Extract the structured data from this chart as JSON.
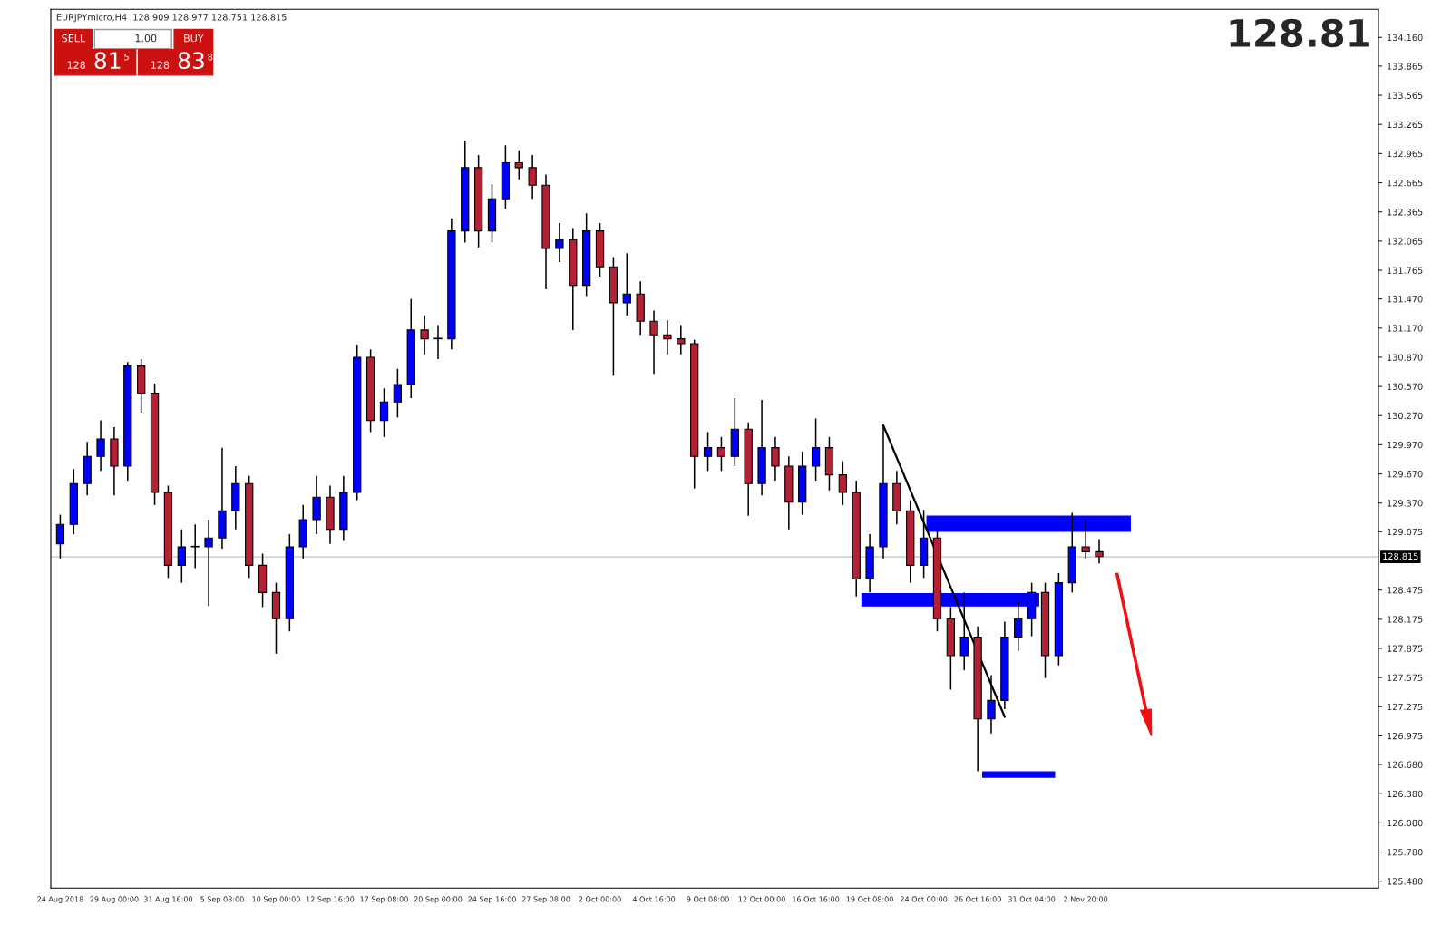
{
  "chart_data": {
    "type": "candlestick",
    "categories": [
      "24 Aug 2018",
      null,
      null,
      null,
      "29 Aug 00:00",
      null,
      null,
      null,
      "31 Aug 16:00",
      null,
      null,
      null,
      "5 Sep 08:00",
      null,
      null,
      null,
      "10 Sep 00:00",
      null,
      null,
      null,
      "12 Sep 16:00",
      null,
      null,
      null,
      "17 Sep 08:00",
      null,
      null,
      null,
      "20 Sep 00:00",
      null,
      null,
      null,
      "24 Sep 16:00",
      null,
      null,
      null,
      "27 Sep 08:00",
      null,
      null,
      null,
      "2 Oct 00:00",
      null,
      null,
      null,
      "4 Oct 16:00",
      null,
      null,
      null,
      "9 Oct 08:00",
      null,
      null,
      null,
      "12 Oct 00:00",
      null,
      null,
      null,
      "16 Oct 16:00",
      null,
      null,
      null,
      "19 Oct 08:00",
      null,
      null,
      null,
      "24 Oct 00:00",
      null,
      null,
      null,
      "26 Oct 16:00",
      null,
      null,
      null,
      "31 Oct 04:00",
      null,
      null,
      null,
      "2 Nov 20:00",
      null,
      null,
      null,
      null,
      null,
      null,
      null,
      null,
      null,
      null,
      null,
      null,
      null,
      null,
      null,
      null,
      null,
      null,
      null,
      null,
      null
    ],
    "ohlc": [
      [
        128.95,
        129.25,
        128.8,
        129.15
      ],
      [
        129.15,
        129.72,
        129.05,
        129.57
      ],
      [
        129.57,
        130.0,
        129.45,
        129.85
      ],
      [
        129.85,
        130.22,
        129.7,
        130.03
      ],
      [
        130.03,
        130.15,
        129.45,
        129.75
      ],
      [
        129.75,
        130.82,
        129.6,
        130.78
      ],
      [
        130.78,
        130.85,
        130.3,
        130.5
      ],
      [
        130.5,
        130.6,
        129.35,
        129.48
      ],
      [
        129.48,
        129.55,
        128.6,
        128.73
      ],
      [
        128.73,
        129.1,
        128.55,
        128.92
      ],
      [
        128.92,
        129.15,
        128.7,
        128.92
      ],
      [
        128.92,
        129.2,
        128.31,
        129.01
      ],
      [
        129.01,
        129.94,
        128.9,
        129.29
      ],
      [
        129.29,
        129.75,
        129.1,
        129.57
      ],
      [
        129.57,
        129.65,
        128.6,
        128.73
      ],
      [
        128.73,
        128.85,
        128.3,
        128.45
      ],
      [
        128.45,
        128.55,
        127.82,
        128.18
      ],
      [
        128.18,
        129.05,
        128.05,
        128.92
      ],
      [
        128.92,
        129.35,
        128.8,
        129.2
      ],
      [
        129.2,
        129.65,
        129.05,
        129.43
      ],
      [
        129.43,
        129.55,
        128.95,
        129.1
      ],
      [
        129.1,
        129.65,
        128.98,
        129.48
      ],
      [
        129.48,
        131.0,
        129.4,
        130.87
      ],
      [
        130.87,
        130.95,
        130.1,
        130.22
      ],
      [
        130.22,
        130.55,
        130.05,
        130.41
      ],
      [
        130.41,
        130.75,
        130.25,
        130.59
      ],
      [
        130.59,
        131.47,
        130.45,
        131.15
      ],
      [
        131.15,
        131.3,
        130.9,
        131.06
      ],
      [
        131.06,
        131.2,
        130.85,
        131.06
      ],
      [
        131.06,
        132.3,
        130.95,
        132.17
      ],
      [
        132.17,
        133.1,
        132.05,
        132.82
      ],
      [
        132.82,
        132.95,
        132.0,
        132.17
      ],
      [
        132.17,
        132.65,
        132.05,
        132.5
      ],
      [
        132.5,
        133.05,
        132.4,
        132.87
      ],
      [
        132.87,
        133.0,
        132.7,
        132.82
      ],
      [
        132.82,
        132.95,
        132.5,
        132.64
      ],
      [
        132.64,
        132.75,
        131.57,
        131.99
      ],
      [
        131.99,
        132.25,
        131.85,
        132.08
      ],
      [
        132.08,
        132.2,
        131.15,
        131.61
      ],
      [
        131.61,
        132.35,
        131.5,
        132.17
      ],
      [
        132.17,
        132.25,
        131.7,
        131.8
      ],
      [
        131.8,
        131.9,
        130.68,
        131.43
      ],
      [
        131.43,
        131.94,
        131.3,
        131.52
      ],
      [
        131.52,
        131.65,
        131.1,
        131.24
      ],
      [
        131.24,
        131.35,
        130.7,
        131.1
      ],
      [
        131.1,
        131.25,
        130.9,
        131.06
      ],
      [
        131.06,
        131.2,
        130.9,
        131.01
      ],
      [
        131.01,
        131.05,
        129.52,
        129.85
      ],
      [
        129.85,
        130.1,
        129.7,
        129.94
      ],
      [
        129.94,
        130.05,
        129.7,
        129.85
      ],
      [
        129.85,
        130.45,
        129.75,
        130.13
      ],
      [
        130.13,
        130.2,
        129.24,
        129.57
      ],
      [
        129.57,
        130.43,
        129.45,
        129.94
      ],
      [
        129.94,
        130.05,
        129.6,
        129.75
      ],
      [
        129.75,
        129.85,
        129.1,
        129.38
      ],
      [
        129.38,
        129.9,
        129.25,
        129.75
      ],
      [
        129.75,
        130.24,
        129.6,
        129.94
      ],
      [
        129.94,
        130.05,
        129.5,
        129.66
      ],
      [
        129.66,
        129.8,
        129.35,
        129.48
      ],
      [
        129.48,
        129.6,
        128.41,
        128.59
      ],
      [
        128.59,
        129.05,
        128.45,
        128.92
      ],
      [
        128.92,
        130.17,
        128.8,
        129.57
      ],
      [
        129.57,
        129.7,
        129.15,
        129.29
      ],
      [
        129.29,
        129.4,
        128.55,
        128.73
      ],
      [
        128.73,
        129.3,
        128.6,
        129.01
      ],
      [
        129.01,
        129.1,
        128.05,
        128.18
      ],
      [
        128.18,
        128.3,
        127.45,
        127.8
      ],
      [
        127.8,
        128.45,
        127.65,
        127.99
      ],
      [
        127.99,
        128.1,
        126.61,
        127.15
      ],
      [
        127.15,
        127.6,
        127.0,
        127.34
      ],
      [
        127.34,
        128.15,
        127.25,
        127.99
      ],
      [
        127.99,
        128.35,
        127.85,
        128.18
      ],
      [
        128.18,
        128.55,
        128.0,
        128.45
      ],
      [
        128.45,
        128.55,
        127.57,
        127.8
      ],
      [
        127.8,
        128.65,
        127.7,
        128.55
      ],
      [
        128.55,
        129.27,
        128.45,
        128.92
      ],
      [
        128.92,
        129.2,
        128.8,
        128.87
      ],
      [
        128.87,
        129.0,
        128.75,
        128.82
      ],
      null,
      null,
      null,
      null,
      null,
      null,
      null,
      null,
      null,
      null,
      null,
      null,
      null,
      null,
      null,
      null,
      null,
      null,
      null,
      null
    ],
    "colors": [
      "#0000ff",
      "#0000ff",
      "#0000ff",
      "#0000ff",
      "#b22234",
      "#0000ff",
      "#b22234",
      "#b22234",
      "#b22234",
      "#0000ff",
      "#0000ff",
      "#0000ff",
      "#0000ff",
      "#0000ff",
      "#b22234",
      "#b22234",
      "#b22234",
      "#0000ff",
      "#0000ff",
      "#0000ff",
      "#b22234",
      "#0000ff",
      "#0000ff",
      "#b22234",
      "#0000ff",
      "#0000ff",
      "#0000ff",
      "#b22234",
      "#0000ff",
      "#0000ff",
      "#0000ff",
      "#b22234",
      "#0000ff",
      "#0000ff",
      "#b22234",
      "#b22234",
      "#b22234",
      "#0000ff",
      "#b22234",
      "#0000ff",
      "#b22234",
      "#b22234",
      "#0000ff",
      "#b22234",
      "#b22234",
      "#b22234",
      "#b22234",
      "#b22234",
      "#0000ff",
      "#b22234",
      "#0000ff",
      "#b22234",
      "#0000ff",
      "#b22234",
      "#b22234",
      "#0000ff",
      "#0000ff",
      "#b22234",
      "#b22234",
      "#b22234",
      "#0000ff",
      "#0000ff",
      "#b22234",
      "#b22234",
      "#0000ff",
      "#b22234",
      "#b22234",
      "#0000ff",
      "#b22234",
      "#0000ff",
      "#0000ff",
      "#0000ff",
      "#0000ff",
      "#b22234",
      "#0000ff",
      "#0000ff",
      "#b22234",
      "#b22234",
      null,
      null,
      null,
      null,
      null,
      null,
      null,
      null,
      null,
      null,
      null,
      null,
      null,
      null,
      null,
      null,
      null,
      null,
      null,
      null
    ],
    "ylim": [
      125.41,
      134.45
    ],
    "yticks": [
      {
        "value": 125.48,
        "label": "125.480"
      },
      {
        "value": 125.78,
        "label": "125.780"
      },
      {
        "value": 126.08,
        "label": "126.080"
      },
      {
        "value": 126.38,
        "label": "126.380"
      },
      {
        "value": 126.68,
        "label": "126.680"
      },
      {
        "value": 126.975,
        "label": "126.975"
      },
      {
        "value": 127.275,
        "label": "127.275"
      },
      {
        "value": 127.575,
        "label": "127.575"
      },
      {
        "value": 127.875,
        "label": "127.875"
      },
      {
        "value": 128.175,
        "label": "128.175"
      },
      {
        "value": 128.475,
        "label": "128.475"
      },
      {
        "value": 129.075,
        "label": "129.075"
      },
      {
        "value": 129.37,
        "label": "129.370"
      },
      {
        "value": 129.67,
        "label": "129.670"
      },
      {
        "value": 129.97,
        "label": "129.970"
      },
      {
        "value": 130.27,
        "label": "130.270"
      },
      {
        "value": 130.57,
        "label": "130.570"
      },
      {
        "value": 130.87,
        "label": "130.870"
      },
      {
        "value": 131.17,
        "label": "131.170"
      },
      {
        "value": 131.47,
        "label": "131.470"
      },
      {
        "value": 131.765,
        "label": "131.765"
      },
      {
        "value": 132.065,
        "label": "132.065"
      },
      {
        "value": 132.365,
        "label": "132.365"
      },
      {
        "value": 132.665,
        "label": "132.665"
      },
      {
        "value": 132.965,
        "label": "132.965"
      },
      {
        "value": 133.265,
        "label": "133.265"
      },
      {
        "value": 133.565,
        "label": "133.565"
      },
      {
        "value": 133.865,
        "label": "133.865"
      },
      {
        "value": 134.16,
        "label": "134.160"
      }
    ],
    "ref_lines": [
      {
        "axis": "y",
        "value": 128.815,
        "label": "128.815",
        "color": "#c0c0c0"
      }
    ],
    "series": [
      {
        "type": "line",
        "color": "#000000",
        "values": [
          null,
          null,
          null,
          null,
          null,
          null,
          null,
          null,
          null,
          null,
          null,
          null,
          null,
          null,
          null,
          null,
          null,
          null,
          null,
          null,
          null,
          null,
          null,
          null,
          null,
          null,
          null,
          null,
          null,
          null,
          null,
          null,
          null,
          null,
          null,
          null,
          null,
          null,
          null,
          null,
          null,
          null,
          null,
          null,
          null,
          null,
          null,
          null,
          null,
          null,
          null,
          null,
          null,
          null,
          null,
          null,
          null,
          null,
          null,
          null,
          null,
          130.17,
          null,
          null,
          null,
          null,
          null,
          null,
          null,
          null,
          127.17,
          null,
          null,
          null,
          null,
          null,
          null,
          null,
          null,
          null,
          null,
          null,
          null,
          null,
          null,
          null,
          null,
          null,
          null,
          null,
          null,
          null,
          null,
          null,
          null,
          null,
          null,
          null
        ]
      }
    ],
    "grid": false,
    "annotations": [
      "EURJPYmicro,H4  128.909 128.977 128.751 128.815",
      "128.81",
      "SELL",
      "1.00",
      "BUY",
      "128",
      "81",
      "5",
      "128",
      "83",
      "8"
    ]
  }
}
